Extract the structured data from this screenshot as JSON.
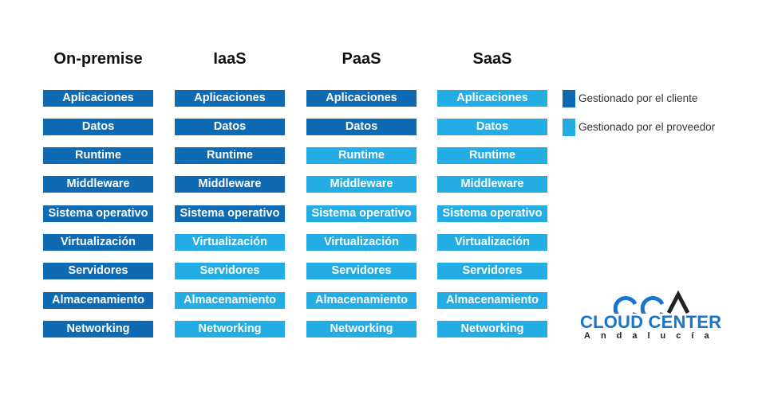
{
  "colors": {
    "client": "#0f6ab4",
    "provider": "#24ace4",
    "logo_blue": "#1a74ce",
    "logo_dark": "#222222"
  },
  "layers": [
    "Aplicaciones",
    "Datos",
    "Runtime",
    "Middleware",
    "Sistema operativo",
    "Virtualización",
    "Servidores",
    "Almacenamiento",
    "Networking"
  ],
  "columns": [
    {
      "title": "On-premise",
      "managed": [
        "client",
        "client",
        "client",
        "client",
        "client",
        "client",
        "client",
        "client",
        "client"
      ]
    },
    {
      "title": "IaaS",
      "managed": [
        "client",
        "client",
        "client",
        "client",
        "client",
        "provider",
        "provider",
        "provider",
        "provider"
      ]
    },
    {
      "title": "PaaS",
      "managed": [
        "client",
        "client",
        "provider",
        "provider",
        "provider",
        "provider",
        "provider",
        "provider",
        "provider"
      ]
    },
    {
      "title": "SaaS",
      "managed": [
        "provider",
        "provider",
        "provider",
        "provider",
        "provider",
        "provider",
        "provider",
        "provider",
        "provider"
      ]
    }
  ],
  "legend": [
    {
      "key": "client",
      "label": "Gestionado por el cliente"
    },
    {
      "key": "provider",
      "label": "Gestionado por el proveedor"
    }
  ],
  "logo": {
    "main": "CLOUD CENTER",
    "sub": "Andalucía"
  }
}
